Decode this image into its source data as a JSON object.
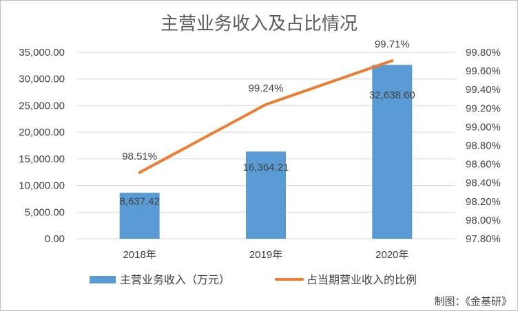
{
  "chart_data": {
    "type": "bar",
    "title": "主营业务收入及占比情况",
    "categories": [
      "2018年",
      "2019年",
      "2020年"
    ],
    "series": [
      {
        "name": "主营业务收入（万元）",
        "type": "bar",
        "axis": "left",
        "color": "#5b9bd5",
        "values": [
          8637.42,
          16364.21,
          32638.6
        ],
        "labels": [
          "8,637.42",
          "16,364.21",
          "32,638.60"
        ]
      },
      {
        "name": "占当期营业收入的比例",
        "type": "line",
        "axis": "right",
        "color": "#ed7d31",
        "values": [
          98.51,
          99.24,
          99.71
        ],
        "labels": [
          "98.51%",
          "99.24%",
          "99.71%"
        ]
      }
    ],
    "y_left": {
      "ylim": [
        0,
        35000
      ],
      "ticks": [
        0,
        5000,
        10000,
        15000,
        20000,
        25000,
        30000,
        35000
      ],
      "tick_labels": [
        "0.00",
        "5,000.00",
        "10,000.00",
        "15,000.00",
        "20,000.00",
        "25,000.00",
        "30,000.00",
        "35,000.00"
      ]
    },
    "y_right": {
      "ylim": [
        97.8,
        99.8
      ],
      "ticks": [
        97.8,
        98.0,
        98.2,
        98.4,
        98.6,
        98.8,
        99.0,
        99.2,
        99.4,
        99.6,
        99.8
      ],
      "tick_labels": [
        "97.80%",
        "98.00%",
        "98.20%",
        "98.40%",
        "98.60%",
        "98.80%",
        "99.00%",
        "99.20%",
        "99.40%",
        "99.60%",
        "99.80%"
      ]
    },
    "grid": true,
    "legend_position": "bottom",
    "gridline_color": "#d9d9d9"
  },
  "credit": "制图：《金基研》"
}
